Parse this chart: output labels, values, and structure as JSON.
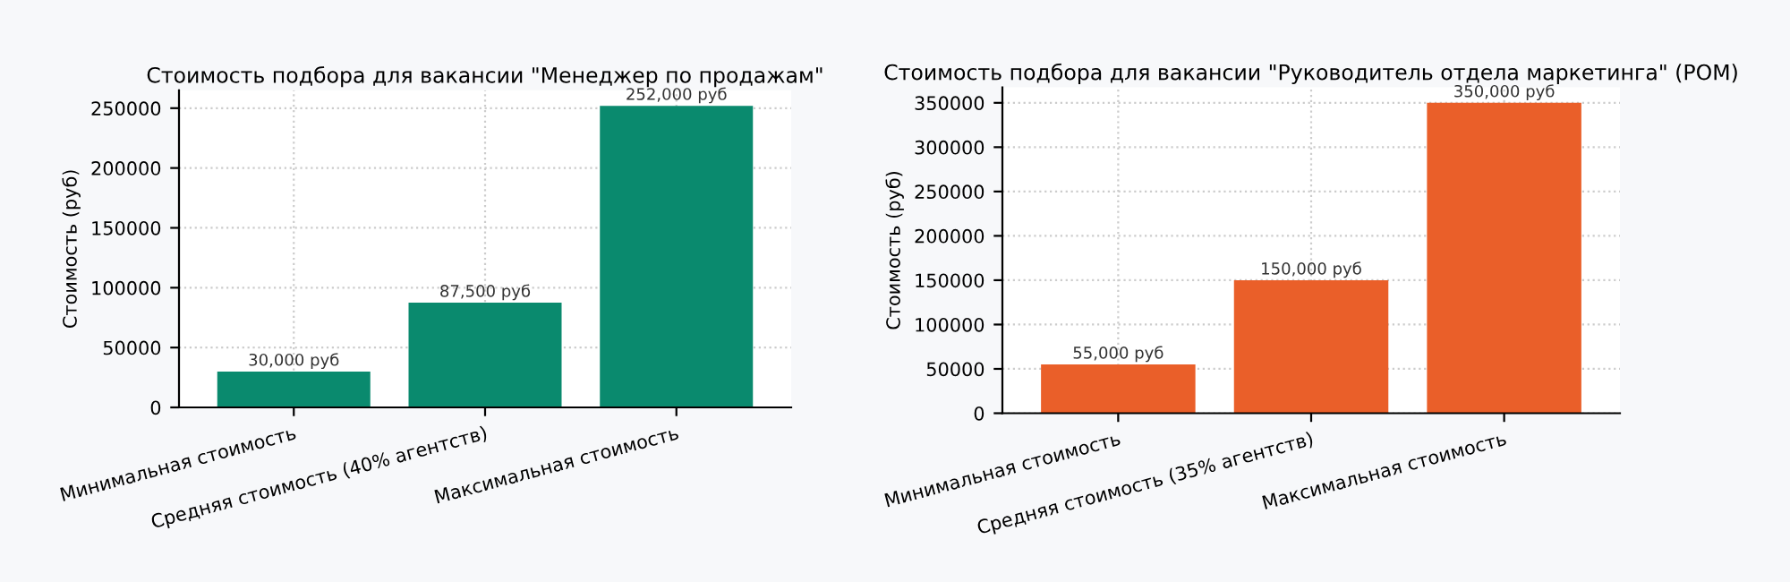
{
  "chart_data": [
    {
      "type": "bar",
      "title": "Стоимость подбора для вакансии \"Менеджер по продажам\"",
      "ylabel": "Стоимость (руб)",
      "categories": [
        "Минимальная стоимость",
        "Средняя стоимость (40% агентств)",
        "Максимальная стоимость"
      ],
      "values": [
        30000,
        87500,
        252000
      ],
      "value_labels": [
        "30,000 руб",
        "87,500 руб",
        "252,000 руб"
      ],
      "color": "#0a8a6e",
      "ylim": [
        0,
        265000
      ],
      "yticks": [
        0,
        50000,
        100000,
        150000,
        200000,
        250000
      ],
      "grid": true
    },
    {
      "type": "bar",
      "title": "Стоимость подбора для вакансии \"Руководитель отдела маркетинга\" (РОМ)",
      "ylabel": "Стоимость (руб)",
      "categories": [
        "Минимальная стоимость",
        "Средняя стоимость (35% агентств)",
        "Максимальная стоимость"
      ],
      "values": [
        55000,
        150000,
        350000
      ],
      "value_labels": [
        "55,000 руб",
        "150,000 руб",
        "350,000 руб"
      ],
      "color": "#ea5f29",
      "ylim": [
        0,
        367500
      ],
      "yticks": [
        0,
        50000,
        100000,
        150000,
        200000,
        250000,
        300000,
        350000
      ],
      "grid": true
    }
  ]
}
